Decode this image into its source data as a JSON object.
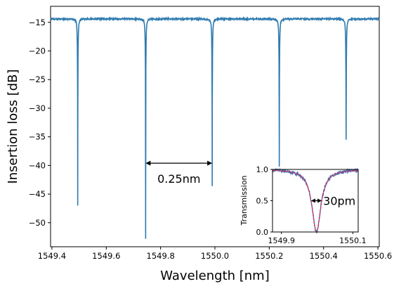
{
  "chart_data": [
    {
      "type": "line",
      "xlabel": "Wavelength [nm]",
      "ylabel": "Insertion loss [dB]",
      "xlim": [
        1549.395,
        1550.605
      ],
      "ylim": [
        -54.2,
        -12.2
      ],
      "xticks": [
        1549.4,
        1549.6,
        1549.8,
        1550.0,
        1550.2,
        1550.4,
        1550.6
      ],
      "xtick_labels": [
        "1549.4",
        "1549.6",
        "1549.8",
        "1550.0",
        "1550.2",
        "1550.4",
        "1550.6"
      ],
      "yticks": [
        -15,
        -20,
        -25,
        -30,
        -35,
        -40,
        -45,
        -50
      ],
      "ytick_labels": [
        "−15",
        "−20",
        "−25",
        "−30",
        "−35",
        "−40",
        "−45",
        "−50"
      ],
      "baseline_db": -14.4,
      "color": "#2f7bb0",
      "dips": [
        {
          "x": 1549.495,
          "min": -47.0
        },
        {
          "x": 1549.745,
          "min": -52.8
        },
        {
          "x": 1549.99,
          "min": -43.6
        },
        {
          "x": 1550.237,
          "min": -40.2
        },
        {
          "x": 1550.483,
          "min": -35.5
        }
      ],
      "annotation": {
        "text": "0.25nm",
        "x_start": 1549.745,
        "x_end": 1549.99,
        "y": -39.6
      }
    },
    {
      "type": "line",
      "title": "",
      "ylabel": "Transmission",
      "xlim": [
        1549.875,
        1550.115
      ],
      "ylim": [
        0.0,
        1.0
      ],
      "xticks": [
        1549.9,
        1550.1
      ],
      "xtick_labels": [
        "1549.9",
        "1550.1"
      ],
      "yticks": [
        0.0,
        0.5,
        1.0
      ],
      "ytick_labels": [
        "0.0",
        "0.5",
        "1.0"
      ],
      "series": [
        {
          "style": "solid",
          "color": "#4a6fb0"
        },
        {
          "style": "dashed",
          "color": "#e0305a"
        }
      ],
      "dip": {
        "x": 1549.998,
        "min": 0.0,
        "fwhm": 0.03
      },
      "annotation": {
        "text": "30pm",
        "x_start": 1549.983,
        "x_end": 1550.013,
        "y": 0.5
      }
    }
  ]
}
